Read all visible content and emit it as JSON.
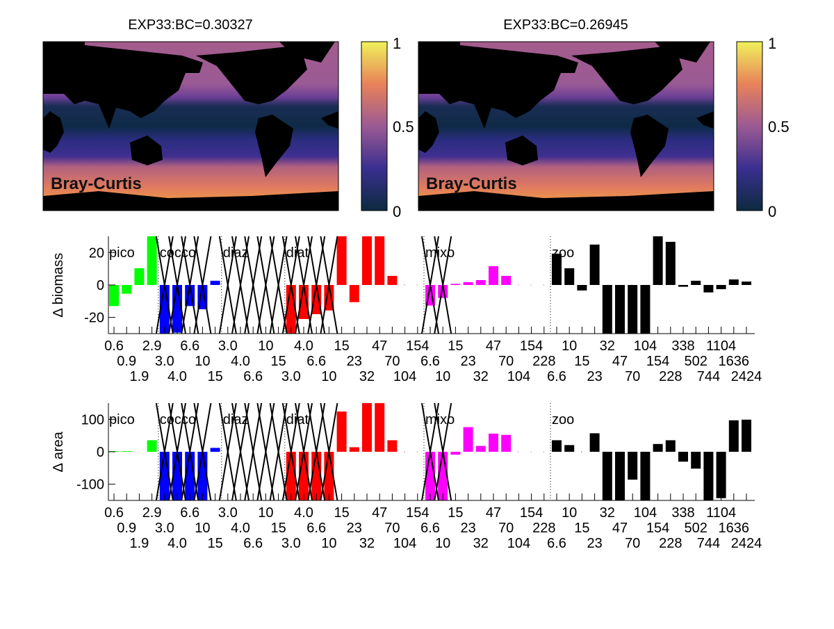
{
  "maps": [
    {
      "title": "EXP33:BC=0.30327",
      "label": "Bray-Curtis",
      "colorbar_ticks": [
        "1",
        "0.5",
        "0"
      ]
    },
    {
      "title": "EXP33:BC=0.26945",
      "label": "Bray-Curtis",
      "colorbar_ticks": [
        "1",
        "0.5",
        "0"
      ]
    }
  ],
  "colormap": [
    "#0c2a3f",
    "#3a2f8f",
    "#9b5a93",
    "#e8825a",
    "#eff25a"
  ],
  "groups": [
    {
      "name": "pico",
      "start": 0,
      "end": 3,
      "color": "#00ff00"
    },
    {
      "name": "cocco",
      "start": 4,
      "end": 8,
      "color": "#0000ff"
    },
    {
      "name": "diaz",
      "start": 9,
      "end": 13,
      "color": "#00ffff"
    },
    {
      "name": "diat",
      "start": 14,
      "end": 24,
      "color": "#ff0000"
    },
    {
      "name": "mixo",
      "start": 25,
      "end": 34,
      "color": "#ff00ff"
    },
    {
      "name": "zoo",
      "start": 35,
      "end": 50,
      "color": "#000000"
    }
  ],
  "crossed_out": [
    4,
    5,
    6,
    7,
    9,
    10,
    11,
    12,
    13,
    14,
    15,
    16,
    17,
    25,
    26
  ],
  "chart_data": [
    {
      "type": "bar",
      "ylabel": "∆ biomass",
      "ylim": [
        -30,
        30
      ],
      "yticks": [
        20,
        0,
        -20
      ],
      "categories": [
        "0.6",
        "0.9",
        "1.9",
        "2.9",
        "3.0",
        "4.0",
        "6.6",
        "10",
        "15",
        "3.0",
        "4.0",
        "6.6",
        "10",
        "15",
        "3.0",
        "4.0",
        "6.6",
        "10",
        "15",
        "23",
        "32",
        "47",
        "70",
        "104",
        "154",
        "6.6",
        "10",
        "15",
        "23",
        "32",
        "47",
        "70",
        "104",
        "154",
        "228",
        "6.6",
        "10",
        "15",
        "23",
        "32",
        "47",
        "70",
        "104",
        "154",
        "228",
        "338",
        "502",
        "744",
        "1104",
        "1636",
        "2424"
      ],
      "values": [
        -13,
        -5.4,
        10.3,
        30,
        -30,
        -29.4,
        -13,
        -15,
        2.6,
        0,
        0,
        0,
        0,
        0,
        -30,
        -21,
        -18,
        -15.7,
        30,
        -10.6,
        30,
        30,
        5.6,
        0,
        0,
        -12.7,
        -8,
        0.7,
        1.7,
        3,
        11.6,
        5.6,
        0,
        0,
        0,
        19.3,
        10.3,
        -3.4,
        24.9,
        -30,
        -30,
        -30,
        -30,
        30,
        26.6,
        -1.1,
        2.6,
        -4.6,
        -2.6,
        3.4,
        2.1
      ]
    },
    {
      "type": "bar",
      "ylabel": "∆ area",
      "ylim": [
        -150,
        150
      ],
      "yticks": [
        100,
        0,
        -100
      ],
      "categories": [
        "0.6",
        "0.9",
        "1.9",
        "2.9",
        "3.0",
        "4.0",
        "6.6",
        "10",
        "15",
        "3.0",
        "4.0",
        "6.6",
        "10",
        "15",
        "3.0",
        "4.0",
        "6.6",
        "10",
        "15",
        "23",
        "32",
        "47",
        "70",
        "104",
        "154",
        "6.6",
        "10",
        "15",
        "23",
        "32",
        "47",
        "70",
        "104",
        "154",
        "228",
        "6.6",
        "10",
        "15",
        "23",
        "32",
        "47",
        "70",
        "104",
        "154",
        "228",
        "338",
        "502",
        "744",
        "1104",
        "1636",
        "2424"
      ],
      "values": [
        2,
        2,
        0,
        35.5,
        -150,
        -150,
        -150,
        -150,
        12,
        0,
        0,
        0,
        0,
        0,
        -150,
        -150,
        -150,
        -150,
        124,
        14,
        150,
        150,
        35.5,
        0,
        0,
        -150,
        -150,
        -9,
        76,
        18,
        56,
        52,
        0,
        0,
        0,
        35.5,
        20.6,
        0,
        57,
        -150,
        -150,
        -86,
        -150,
        24,
        35.5,
        -30.5,
        -52,
        -150,
        -143,
        97,
        99
      ]
    }
  ]
}
